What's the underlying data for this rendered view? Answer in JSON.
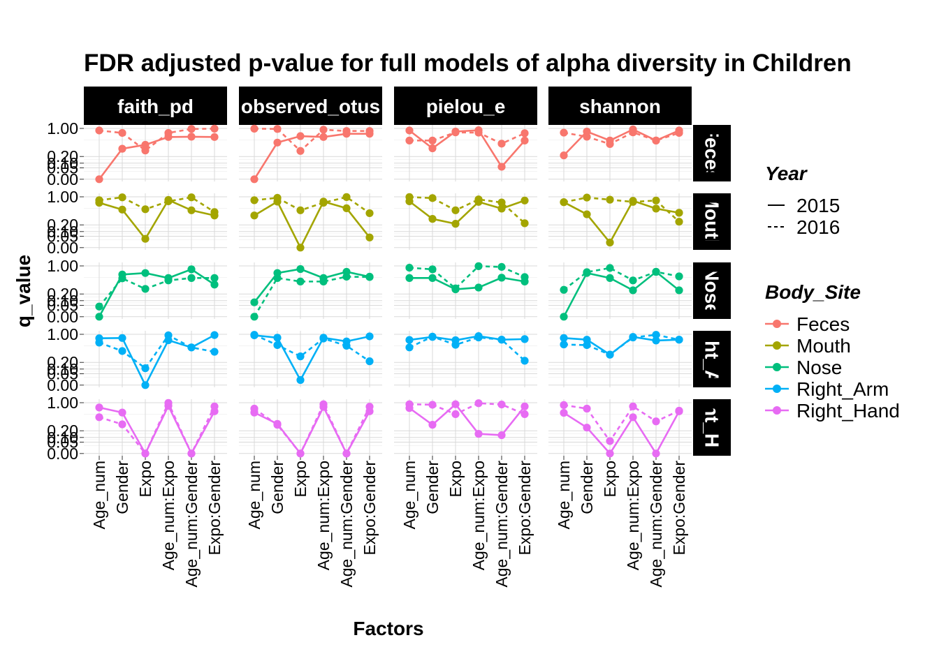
{
  "chart_data": {
    "type": "line",
    "title": "FDR adjusted p-value for full models of alpha diversity in Children",
    "xlabel": "Factors",
    "ylabel": "q_value",
    "x": [
      "Age_num",
      "Gender",
      "Expo",
      "Age_num:Expo",
      "Age_num:Gender",
      "Expo:Gender"
    ],
    "y_ticks": [
      "0.00",
      "0.05",
      "0.10",
      "0.20",
      "1.00"
    ],
    "y_scale": "sqrt",
    "ylim": [
      0,
      1.0
    ],
    "grid": true,
    "facet_cols": [
      "faith_pd",
      "observed_otus",
      "pielou_e",
      "shannon"
    ],
    "facet_rows": [
      "Feces",
      "Mouth",
      "Nose",
      "Right_Arm",
      "Right_Hand"
    ],
    "legend": {
      "position": "right",
      "year_title": "Year",
      "year_items": [
        {
          "label": "2015",
          "linetype": "solid"
        },
        {
          "label": "2016",
          "linetype": "dashed"
        }
      ],
      "site_title": "Body_Site",
      "site_items": [
        {
          "label": "Feces",
          "color": "#F8766D"
        },
        {
          "label": "Mouth",
          "color": "#A3A500"
        },
        {
          "label": "Nose",
          "color": "#00BF7D"
        },
        {
          "label": "Right_Arm",
          "color": "#00B0F6"
        },
        {
          "label": "Right_Hand",
          "color": "#E76BF3"
        }
      ]
    },
    "series": [
      {
        "metric": "faith_pd",
        "site": "Feces",
        "year": "2015",
        "values": [
          0.0,
          0.36,
          0.46,
          0.69,
          0.7,
          0.69
        ]
      },
      {
        "metric": "faith_pd",
        "site": "Feces",
        "year": "2016",
        "values": [
          0.92,
          0.83,
          0.32,
          0.83,
          0.98,
          0.99
        ]
      },
      {
        "metric": "faith_pd",
        "site": "Mouth",
        "year": "2015",
        "values": [
          0.78,
          0.56,
          0.03,
          0.88,
          0.54,
          0.4
        ]
      },
      {
        "metric": "faith_pd",
        "site": "Mouth",
        "year": "2016",
        "values": [
          0.87,
          0.98,
          0.57,
          0.83,
          0.98,
          0.49
        ]
      },
      {
        "metric": "faith_pd",
        "site": "Nose",
        "year": "2015",
        "values": [
          0.0,
          0.69,
          0.74,
          0.58,
          0.87,
          0.4
        ]
      },
      {
        "metric": "faith_pd",
        "site": "Nose",
        "year": "2016",
        "values": [
          0.04,
          0.57,
          0.3,
          0.51,
          0.58,
          0.58
        ]
      },
      {
        "metric": "faith_pd",
        "site": "Right_Arm",
        "year": "2015",
        "values": [
          0.85,
          0.86,
          0.0,
          0.78,
          0.55,
          0.97
        ]
      },
      {
        "metric": "faith_pd",
        "site": "Right_Arm",
        "year": "2016",
        "values": [
          0.7,
          0.45,
          0.11,
          0.96,
          0.55,
          0.43
        ]
      },
      {
        "metric": "faith_pd",
        "site": "Right_Hand",
        "year": "2015",
        "values": [
          0.82,
          0.65,
          0.0,
          0.88,
          0.0,
          0.69
        ]
      },
      {
        "metric": "faith_pd",
        "site": "Right_Hand",
        "year": "2016",
        "values": [
          0.51,
          0.33,
          0.0,
          0.99,
          0.0,
          0.86
        ]
      },
      {
        "metric": "observed_otus",
        "site": "Feces",
        "year": "2015",
        "values": [
          0.0,
          0.52,
          0.72,
          0.69,
          0.8,
          0.8
        ]
      },
      {
        "metric": "observed_otus",
        "site": "Feces",
        "year": "2016",
        "values": [
          0.99,
          0.98,
          0.31,
          0.95,
          0.9,
          0.9
        ]
      },
      {
        "metric": "observed_otus",
        "site": "Mouth",
        "year": "2015",
        "values": [
          0.4,
          0.82,
          0.0,
          0.82,
          0.6,
          0.04
        ]
      },
      {
        "metric": "observed_otus",
        "site": "Mouth",
        "year": "2016",
        "values": [
          0.87,
          0.96,
          0.54,
          0.78,
          0.99,
          0.46
        ]
      },
      {
        "metric": "observed_otus",
        "site": "Nose",
        "year": "2015",
        "values": [
          0.08,
          0.74,
          0.88,
          0.58,
          0.78,
          0.62
        ]
      },
      {
        "metric": "observed_otus",
        "site": "Nose",
        "year": "2016",
        "values": [
          0.0,
          0.58,
          0.48,
          0.48,
          0.62,
          0.61
        ]
      },
      {
        "metric": "observed_otus",
        "site": "Right_Arm",
        "year": "2015",
        "values": [
          0.96,
          0.87,
          0.01,
          0.87,
          0.74,
          0.92
        ]
      },
      {
        "metric": "observed_otus",
        "site": "Right_Arm",
        "year": "2016",
        "values": [
          0.98,
          0.62,
          0.32,
          0.84,
          0.6,
          0.22
        ]
      },
      {
        "metric": "observed_otus",
        "site": "Right_Hand",
        "year": "2015",
        "values": [
          0.65,
          0.34,
          0.0,
          0.84,
          0.0,
          0.69
        ]
      },
      {
        "metric": "observed_otus",
        "site": "Right_Hand",
        "year": "2016",
        "values": [
          0.78,
          0.32,
          0.0,
          0.94,
          0.0,
          0.85
        ]
      },
      {
        "metric": "pielou_e",
        "site": "Feces",
        "year": "2015",
        "values": [
          0.92,
          0.37,
          0.88,
          0.93,
          0.06,
          0.58
        ]
      },
      {
        "metric": "pielou_e",
        "site": "Feces",
        "year": "2016",
        "values": [
          0.58,
          0.58,
          0.85,
          0.84,
          0.49,
          0.82
        ]
      },
      {
        "metric": "pielou_e",
        "site": "Mouth",
        "year": "2015",
        "values": [
          0.83,
          0.32,
          0.22,
          0.81,
          0.59,
          0.86
        ]
      },
      {
        "metric": "pielou_e",
        "site": "Mouth",
        "year": "2016",
        "values": [
          0.99,
          0.95,
          0.54,
          0.9,
          0.79,
          0.23
        ]
      },
      {
        "metric": "pielou_e",
        "site": "Nose",
        "year": "2015",
        "values": [
          0.58,
          0.58,
          0.29,
          0.33,
          0.59,
          0.48
        ]
      },
      {
        "metric": "pielou_e",
        "site": "Nose",
        "year": "2016",
        "values": [
          0.93,
          0.87,
          0.31,
          0.99,
          0.96,
          0.61
        ]
      },
      {
        "metric": "pielou_e",
        "site": "Right_Arm",
        "year": "2015",
        "values": [
          0.79,
          0.9,
          0.78,
          0.93,
          0.8,
          0.82
        ]
      },
      {
        "metric": "pielou_e",
        "site": "Right_Arm",
        "year": "2016",
        "values": [
          0.55,
          0.91,
          0.63,
          0.88,
          0.8,
          0.23
        ]
      },
      {
        "metric": "pielou_e",
        "site": "Right_Hand",
        "year": "2015",
        "values": [
          0.8,
          0.32,
          0.94,
          0.15,
          0.13,
          0.86
        ]
      },
      {
        "metric": "pielou_e",
        "site": "Right_Hand",
        "year": "2016",
        "values": [
          0.94,
          0.92,
          0.6,
          0.98,
          0.93,
          0.6
        ]
      },
      {
        "metric": "shannon",
        "site": "Feces",
        "year": "2015",
        "values": [
          0.22,
          0.88,
          0.58,
          0.96,
          0.58,
          0.92
        ]
      },
      {
        "metric": "shannon",
        "site": "Feces",
        "year": "2016",
        "values": [
          0.84,
          0.7,
          0.48,
          0.85,
          0.58,
          0.83
        ]
      },
      {
        "metric": "shannon",
        "site": "Mouth",
        "year": "2015",
        "values": [
          0.8,
          0.43,
          0.01,
          0.85,
          0.59,
          0.47
        ]
      },
      {
        "metric": "shannon",
        "site": "Mouth",
        "year": "2016",
        "values": [
          0.8,
          0.97,
          0.89,
          0.81,
          0.86,
          0.26
        ]
      },
      {
        "metric": "shannon",
        "site": "Nose",
        "year": "2015",
        "values": [
          0.0,
          0.74,
          0.58,
          0.27,
          0.78,
          0.27
        ]
      },
      {
        "metric": "shannon",
        "site": "Nose",
        "year": "2016",
        "values": [
          0.28,
          0.77,
          0.92,
          0.51,
          0.78,
          0.63
        ]
      },
      {
        "metric": "shannon",
        "site": "Right_Arm",
        "year": "2015",
        "values": [
          0.86,
          0.8,
          0.36,
          0.9,
          0.77,
          0.8
        ]
      },
      {
        "metric": "shannon",
        "site": "Right_Arm",
        "year": "2016",
        "values": [
          0.64,
          0.62,
          0.36,
          0.88,
          0.98,
          0.8
        ]
      },
      {
        "metric": "shannon",
        "site": "Right_Hand",
        "year": "2015",
        "values": [
          0.64,
          0.26,
          0.0,
          0.51,
          0.0,
          0.69
        ]
      },
      {
        "metric": "shannon",
        "site": "Right_Hand",
        "year": "2016",
        "values": [
          0.91,
          0.78,
          0.06,
          0.86,
          0.4,
          0.71
        ]
      }
    ]
  }
}
